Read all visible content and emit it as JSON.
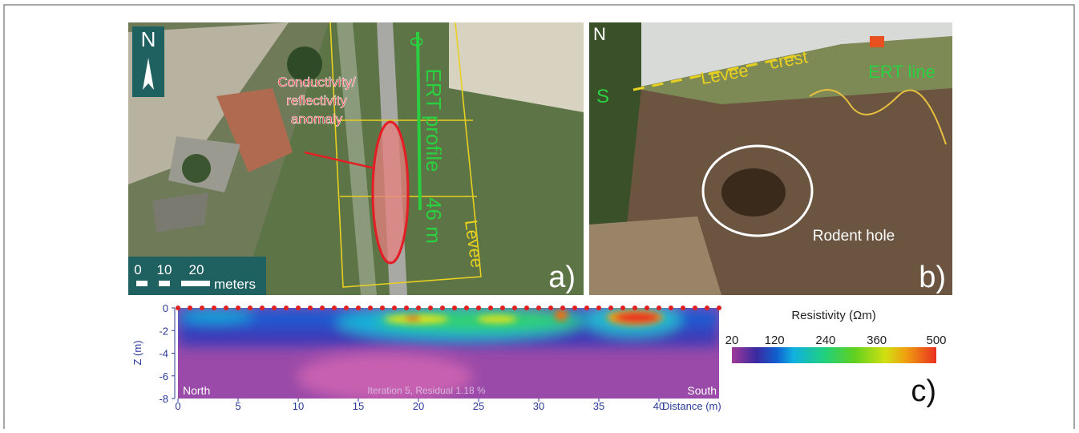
{
  "panel_a": {
    "north": "N",
    "anomaly_label": [
      "Conductivity/",
      "reflectivity",
      "anomaly"
    ],
    "profile_start": "0",
    "profile_label": "ERT profile",
    "profile_length": "46 m",
    "levee_label": "Levee",
    "scale_labels": [
      "0",
      "10",
      "20"
    ],
    "scale_unit": "meters",
    "panel_label": "a)"
  },
  "panel_b": {
    "north": "N",
    "south": "S",
    "levee_label": "Levee",
    "crest_label": "crest",
    "ert_line": "ERT line",
    "rodent_hole": "Rodent hole",
    "panel_label": "b)"
  },
  "panel_c": {
    "x_label": "Distance (m)",
    "y_label": "Z (m)",
    "xlim": [
      0,
      45
    ],
    "xticks": [
      0,
      5,
      10,
      15,
      20,
      25,
      30,
      35,
      40
    ],
    "ylim": [
      -8,
      0
    ],
    "yticks": [
      0,
      -2,
      -4,
      -6,
      -8
    ],
    "left_label": "North",
    "right_label": "South",
    "note": "Iteration 5, Residual 1.18 %",
    "colorbar": {
      "title": "Resistivity (Ωm)",
      "lim": [
        20,
        500
      ],
      "ticks": [
        20,
        120,
        240,
        360,
        500
      ]
    },
    "panel_label": "c)"
  }
}
